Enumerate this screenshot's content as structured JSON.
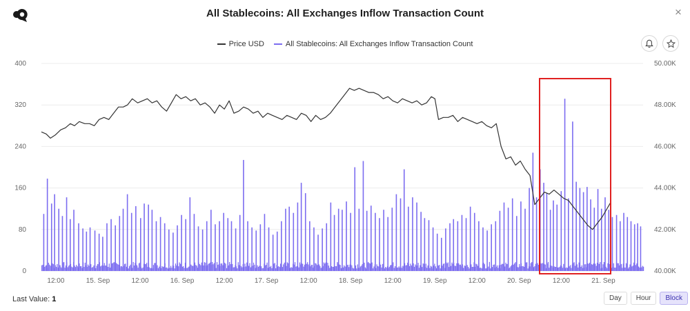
{
  "header": {
    "title": "All Stablecoins: All Exchanges Inflow Transaction Count",
    "close_glyph": "×"
  },
  "icons": {
    "logo": "cryptoquant-logo-icon",
    "bell": "bell-icon",
    "star": "star-icon",
    "close": "close-icon"
  },
  "legend": {
    "items": [
      {
        "label": "Price USD",
        "color": "#333333"
      },
      {
        "label": "All Stablecoins: All Exchanges Inflow Transaction Count",
        "color": "#7b6cf0"
      }
    ]
  },
  "footer": {
    "last_value_label": "Last Value:",
    "last_value": "1",
    "range_buttons": [
      "Day",
      "Hour",
      "Block"
    ],
    "active_range": "Block"
  },
  "colors": {
    "bars": "#7b6cf0",
    "price": "#333333",
    "highlight": "#e02020"
  },
  "chart_data": {
    "type": "bar+line",
    "left_axis": {
      "ticks": [
        "0",
        "80",
        "160",
        "240",
        "320",
        "400"
      ],
      "range": [
        0,
        400
      ]
    },
    "right_axis": {
      "ticks": [
        "40.00K",
        "42.00K",
        "44.00K",
        "46.00K",
        "48.00K",
        "50.00K"
      ],
      "range": [
        40000,
        50000
      ]
    },
    "x_axis": {
      "range": [
        0,
        100
      ],
      "ticks": [
        {
          "label": "12:00",
          "x": 2.4
        },
        {
          "label": "15. Sep",
          "x": 9.4
        },
        {
          "label": "12:00",
          "x": 16.4
        },
        {
          "label": "16. Sep",
          "x": 23.4
        },
        {
          "label": "12:00",
          "x": 30.4
        },
        {
          "label": "17. Sep",
          "x": 37.4
        },
        {
          "label": "12:00",
          "x": 44.4
        },
        {
          "label": "18. Sep",
          "x": 51.4
        },
        {
          "label": "12:00",
          "x": 58.4
        },
        {
          "label": "19. Sep",
          "x": 65.4
        },
        {
          "label": "12:00",
          "x": 72.4
        },
        {
          "label": "20. Sep",
          "x": 79.4
        },
        {
          "label": "12:00",
          "x": 86.4
        },
        {
          "label": "21. Sep",
          "x": 93.4
        }
      ]
    },
    "inflow_series": {
      "name": "All Stablecoins: All Exchanges Inflow Transaction Count",
      "baseline_level": 14,
      "spikes": [
        [
          0.3,
          110
        ],
        [
          0.9,
          178
        ],
        [
          1.6,
          130
        ],
        [
          2.1,
          148
        ],
        [
          2.8,
          120
        ],
        [
          3.4,
          106
        ],
        [
          4.1,
          142
        ],
        [
          4.7,
          100
        ],
        [
          5.3,
          118
        ],
        [
          6.1,
          92
        ],
        [
          6.8,
          82
        ],
        [
          7.4,
          76
        ],
        [
          8.0,
          84
        ],
        [
          8.8,
          78
        ],
        [
          9.5,
          72
        ],
        [
          10.1,
          66
        ],
        [
          10.8,
          92
        ],
        [
          11.5,
          100
        ],
        [
          12.2,
          88
        ],
        [
          12.9,
          106
        ],
        [
          13.5,
          120
        ],
        [
          14.2,
          148
        ],
        [
          14.9,
          112
        ],
        [
          15.6,
          125
        ],
        [
          16.4,
          102
        ],
        [
          17.0,
          130
        ],
        [
          17.7,
          128
        ],
        [
          18.3,
          118
        ],
        [
          19.0,
          96
        ],
        [
          19.7,
          104
        ],
        [
          20.4,
          92
        ],
        [
          21.1,
          80
        ],
        [
          21.8,
          74
        ],
        [
          22.5,
          88
        ],
        [
          23.2,
          108
        ],
        [
          23.9,
          100
        ],
        [
          24.6,
          142
        ],
        [
          25.3,
          110
        ],
        [
          26.0,
          86
        ],
        [
          26.7,
          80
        ],
        [
          27.4,
          96
        ],
        [
          28.1,
          118
        ],
        [
          28.8,
          90
        ],
        [
          29.5,
          96
        ],
        [
          30.2,
          112
        ],
        [
          30.9,
          102
        ],
        [
          31.5,
          96
        ],
        [
          32.2,
          82
        ],
        [
          32.9,
          108
        ],
        [
          33.5,
          214
        ],
        [
          34.2,
          96
        ],
        [
          34.9,
          84
        ],
        [
          35.6,
          78
        ],
        [
          36.3,
          90
        ],
        [
          37.0,
          110
        ],
        [
          37.7,
          84
        ],
        [
          38.4,
          70
        ],
        [
          39.1,
          76
        ],
        [
          39.8,
          96
        ],
        [
          40.5,
          120
        ],
        [
          41.1,
          124
        ],
        [
          41.8,
          112
        ],
        [
          42.5,
          132
        ],
        [
          43.1,
          170
        ],
        [
          43.8,
          150
        ],
        [
          44.5,
          96
        ],
        [
          45.2,
          84
        ],
        [
          45.9,
          70
        ],
        [
          46.6,
          82
        ],
        [
          47.3,
          92
        ],
        [
          48.0,
          132
        ],
        [
          48.6,
          108
        ],
        [
          49.3,
          120
        ],
        [
          49.9,
          118
        ],
        [
          50.6,
          134
        ],
        [
          51.3,
          112
        ],
        [
          52.0,
          200
        ],
        [
          52.7,
          120
        ],
        [
          53.4,
          212
        ],
        [
          54.0,
          116
        ],
        [
          54.7,
          126
        ],
        [
          55.4,
          112
        ],
        [
          56.1,
          102
        ],
        [
          56.8,
          118
        ],
        [
          57.5,
          104
        ],
        [
          58.2,
          122
        ],
        [
          58.9,
          148
        ],
        [
          59.6,
          140
        ],
        [
          60.2,
          196
        ],
        [
          60.9,
          124
        ],
        [
          61.6,
          142
        ],
        [
          62.3,
          132
        ],
        [
          63.0,
          114
        ],
        [
          63.6,
          102
        ],
        [
          64.3,
          98
        ],
        [
          65.0,
          84
        ],
        [
          65.7,
          72
        ],
        [
          66.4,
          64
        ],
        [
          67.1,
          82
        ],
        [
          67.8,
          92
        ],
        [
          68.4,
          100
        ],
        [
          69.1,
          96
        ],
        [
          69.8,
          108
        ],
        [
          70.5,
          102
        ],
        [
          71.2,
          124
        ],
        [
          71.9,
          112
        ],
        [
          72.6,
          96
        ],
        [
          73.3,
          84
        ],
        [
          74.0,
          78
        ],
        [
          74.7,
          90
        ],
        [
          75.4,
          96
        ],
        [
          76.1,
          116
        ],
        [
          76.8,
          132
        ],
        [
          77.5,
          122
        ],
        [
          78.2,
          140
        ],
        [
          78.9,
          106
        ],
        [
          79.6,
          134
        ],
        [
          80.3,
          120
        ],
        [
          81.0,
          160
        ],
        [
          81.6,
          228
        ],
        [
          82.2,
          142
        ],
        [
          82.8,
          196
        ],
        [
          83.4,
          170
        ],
        [
          83.9,
          150
        ],
        [
          84.5,
          118
        ],
        [
          85.0,
          136
        ],
        [
          85.6,
          128
        ],
        [
          86.3,
          154
        ],
        [
          86.9,
          332
        ],
        [
          87.5,
          140
        ],
        [
          88.2,
          288
        ],
        [
          88.8,
          172
        ],
        [
          89.4,
          160
        ],
        [
          90.0,
          152
        ],
        [
          90.6,
          162
        ],
        [
          91.2,
          138
        ],
        [
          91.8,
          122
        ],
        [
          92.4,
          158
        ],
        [
          93.0,
          120
        ],
        [
          93.6,
          142
        ],
        [
          94.2,
          118
        ],
        [
          94.8,
          104
        ],
        [
          95.5,
          108
        ],
        [
          96.1,
          96
        ],
        [
          96.7,
          112
        ],
        [
          97.3,
          104
        ],
        [
          97.9,
          96
        ],
        [
          98.5,
          90
        ],
        [
          99.0,
          92
        ],
        [
          99.5,
          86
        ]
      ]
    },
    "price_series": {
      "name": "Price USD",
      "points": [
        [
          0.0,
          46.7
        ],
        [
          0.8,
          46.6
        ],
        [
          1.5,
          46.4
        ],
        [
          2.3,
          46.55
        ],
        [
          3.2,
          46.8
        ],
        [
          4.0,
          46.9
        ],
        [
          4.8,
          47.1
        ],
        [
          5.5,
          47.0
        ],
        [
          6.3,
          47.2
        ],
        [
          7.2,
          47.1
        ],
        [
          8.0,
          47.1
        ],
        [
          8.8,
          47.0
        ],
        [
          9.6,
          47.3
        ],
        [
          10.4,
          47.4
        ],
        [
          11.2,
          47.3
        ],
        [
          12.0,
          47.6
        ],
        [
          12.8,
          47.9
        ],
        [
          13.6,
          47.9
        ],
        [
          14.3,
          48.0
        ],
        [
          15.1,
          48.3
        ],
        [
          16.0,
          48.1
        ],
        [
          16.8,
          48.2
        ],
        [
          17.6,
          48.3
        ],
        [
          18.4,
          48.1
        ],
        [
          19.2,
          48.2
        ],
        [
          20.0,
          47.9
        ],
        [
          20.8,
          47.7
        ],
        [
          21.6,
          48.1
        ],
        [
          22.4,
          48.5
        ],
        [
          23.2,
          48.3
        ],
        [
          24.0,
          48.4
        ],
        [
          24.8,
          48.2
        ],
        [
          25.6,
          48.3
        ],
        [
          26.4,
          48.0
        ],
        [
          27.2,
          48.1
        ],
        [
          28.0,
          47.9
        ],
        [
          28.8,
          47.6
        ],
        [
          29.6,
          48.0
        ],
        [
          30.4,
          47.8
        ],
        [
          31.2,
          48.2
        ],
        [
          32.0,
          47.6
        ],
        [
          32.8,
          47.7
        ],
        [
          33.6,
          47.9
        ],
        [
          34.4,
          47.8
        ],
        [
          35.2,
          47.6
        ],
        [
          36.0,
          47.7
        ],
        [
          36.8,
          47.4
        ],
        [
          37.6,
          47.6
        ],
        [
          38.4,
          47.5
        ],
        [
          39.2,
          47.4
        ],
        [
          40.0,
          47.3
        ],
        [
          40.8,
          47.5
        ],
        [
          41.6,
          47.4
        ],
        [
          42.4,
          47.3
        ],
        [
          43.2,
          47.6
        ],
        [
          44.0,
          47.5
        ],
        [
          44.8,
          47.2
        ],
        [
          45.6,
          47.5
        ],
        [
          46.4,
          47.3
        ],
        [
          47.2,
          47.4
        ],
        [
          48.0,
          47.6
        ],
        [
          48.8,
          47.9
        ],
        [
          49.6,
          48.2
        ],
        [
          50.4,
          48.5
        ],
        [
          51.2,
          48.8
        ],
        [
          52.0,
          48.7
        ],
        [
          52.8,
          48.8
        ],
        [
          53.6,
          48.7
        ],
        [
          54.4,
          48.6
        ],
        [
          55.2,
          48.6
        ],
        [
          56.0,
          48.5
        ],
        [
          56.8,
          48.3
        ],
        [
          57.6,
          48.4
        ],
        [
          58.4,
          48.2
        ],
        [
          59.2,
          48.1
        ],
        [
          60.0,
          48.3
        ],
        [
          60.8,
          48.2
        ],
        [
          61.6,
          48.1
        ],
        [
          62.4,
          48.2
        ],
        [
          63.2,
          48.0
        ],
        [
          64.0,
          48.1
        ],
        [
          64.8,
          48.4
        ],
        [
          65.4,
          48.3
        ],
        [
          66.0,
          47.3
        ],
        [
          66.8,
          47.4
        ],
        [
          67.6,
          47.4
        ],
        [
          68.4,
          47.5
        ],
        [
          69.2,
          47.2
        ],
        [
          70.0,
          47.4
        ],
        [
          70.8,
          47.3
        ],
        [
          71.6,
          47.2
        ],
        [
          72.4,
          47.1
        ],
        [
          73.2,
          47.2
        ],
        [
          74.0,
          47.0
        ],
        [
          74.8,
          46.9
        ],
        [
          75.6,
          47.1
        ],
        [
          76.4,
          46.0
        ],
        [
          77.2,
          45.4
        ],
        [
          78.0,
          45.5
        ],
        [
          78.8,
          45.1
        ],
        [
          79.6,
          45.3
        ],
        [
          80.4,
          44.9
        ],
        [
          81.2,
          44.6
        ],
        [
          82.0,
          43.2
        ],
        [
          82.8,
          43.5
        ],
        [
          83.6,
          43.8
        ],
        [
          84.4,
          43.7
        ],
        [
          85.2,
          43.9
        ],
        [
          86.0,
          43.7
        ],
        [
          86.8,
          43.5
        ],
        [
          87.6,
          43.4
        ],
        [
          88.4,
          43.1
        ],
        [
          89.2,
          42.8
        ],
        [
          90.0,
          42.5
        ],
        [
          90.8,
          42.2
        ],
        [
          91.6,
          42.0
        ],
        [
          92.4,
          42.3
        ],
        [
          93.2,
          42.6
        ],
        [
          94.0,
          43.0
        ],
        [
          94.6,
          43.3
        ]
      ]
    }
  }
}
